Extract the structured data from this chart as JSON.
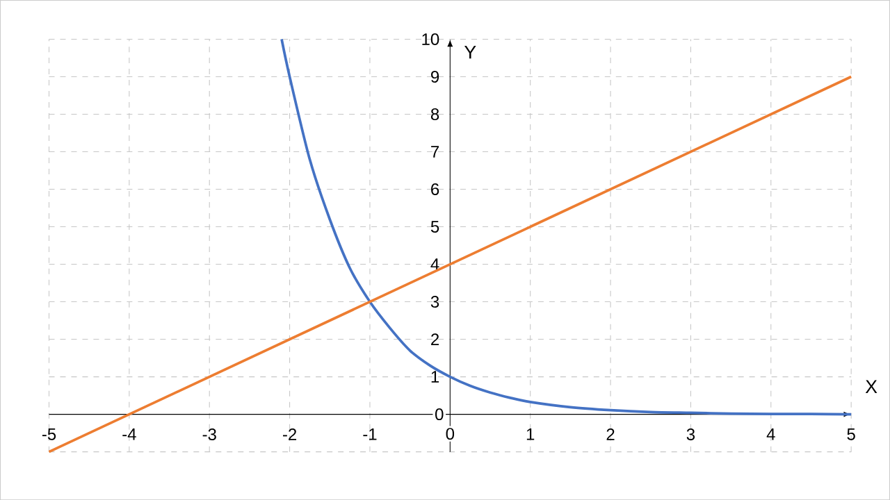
{
  "chart_data": {
    "type": "line",
    "xlabel": "X",
    "ylabel": "Y",
    "xlim": [
      -5,
      5
    ],
    "ylim": [
      -1,
      10
    ],
    "xticks": [
      -5,
      -4,
      -3,
      -2,
      -1,
      0,
      1,
      2,
      3,
      4,
      5
    ],
    "yticks": [
      {
        "value": -1,
        "label": null
      },
      0,
      1,
      2,
      3,
      4,
      5,
      6,
      7,
      8,
      9,
      10
    ],
    "grid": true,
    "marker": "none",
    "line_style": "solid",
    "series": [
      {
        "color": "#4472c4",
        "x": [
          -2.1,
          -2,
          -1.75,
          -1.5,
          -1.25,
          -1,
          -0.75,
          -0.5,
          -0.25,
          0,
          0.25,
          0.5,
          0.75,
          1,
          1.5,
          2,
          2.5,
          3,
          3.5,
          4,
          4.5,
          5
        ],
        "values": [
          10,
          9,
          6.8,
          5.2,
          3.9,
          3,
          2.3,
          1.7,
          1.3,
          1,
          0.76,
          0.58,
          0.44,
          0.33,
          0.19,
          0.11,
          0.06,
          0.04,
          0.02,
          0.01,
          0.01,
          0
        ]
      },
      {
        "color": "#ed7d31",
        "x": [
          -5,
          5
        ],
        "values": [
          -1,
          9
        ]
      }
    ]
  }
}
